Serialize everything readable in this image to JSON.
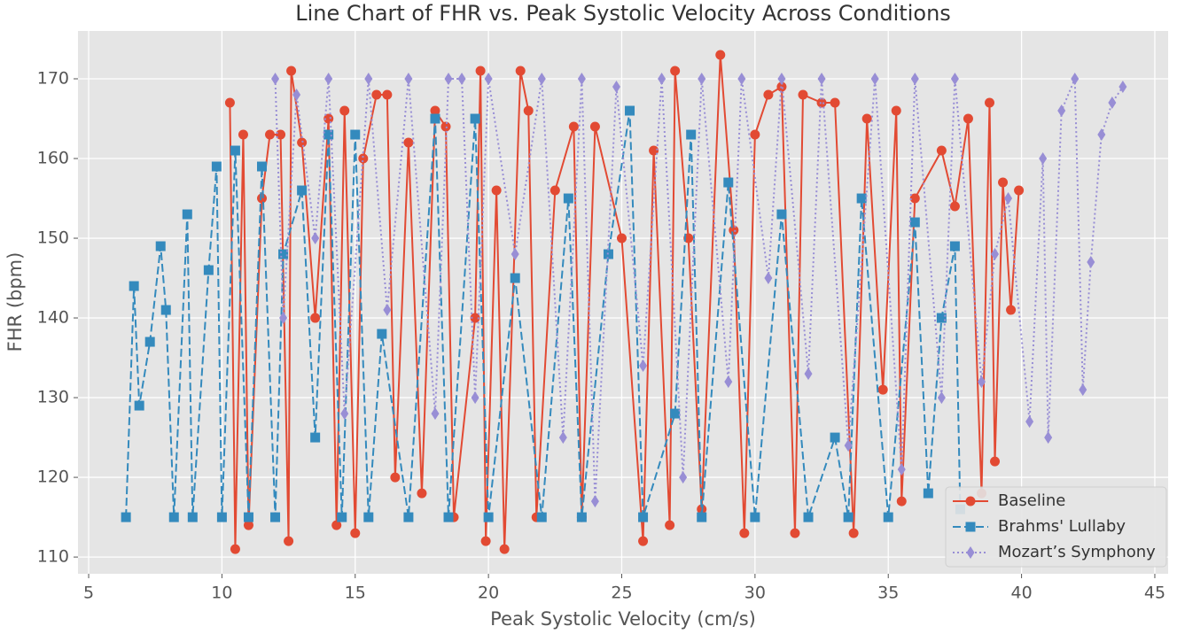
{
  "chart_data": {
    "type": "line",
    "title": "Line Chart of FHR vs. Peak Systolic Velocity Across Conditions",
    "x_label": "Peak Systolic Velocity (cm/s)",
    "y_label": "FHR (bpm)",
    "xlim": [
      4.6,
      45.5
    ],
    "ylim": [
      107.9,
      176
    ],
    "xticks": [
      5,
      10,
      15,
      20,
      25,
      30,
      35,
      40,
      45
    ],
    "yticks": [
      110,
      120,
      130,
      140,
      150,
      160,
      170
    ],
    "grid": true,
    "legend": "lower right",
    "series": [
      {
        "name": "Baseline",
        "color": "#E24A33",
        "marker": "circle",
        "linestyle": "solid",
        "x": [
          10.3,
          10.5,
          10.8,
          11.0,
          11.5,
          11.8,
          12.2,
          12.5,
          12.6,
          13.0,
          13.5,
          14.0,
          14.3,
          14.6,
          15.0,
          15.3,
          15.8,
          16.2,
          16.5,
          17.0,
          17.5,
          18.0,
          18.4,
          18.7,
          19.5,
          19.7,
          19.9,
          20.3,
          20.6,
          21.2,
          21.5,
          21.8,
          22.5,
          23.2,
          23.5,
          24.0,
          25.0,
          25.8,
          26.2,
          26.8,
          27.0,
          27.5,
          28.0,
          28.7,
          29.2,
          29.6,
          30.0,
          30.5,
          31.0,
          31.5,
          31.8,
          32.5,
          33.0,
          33.7,
          34.2,
          34.8,
          35.3,
          35.5,
          36.0,
          37.0,
          37.5,
          38.0,
          38.5,
          38.8,
          39.0,
          39.3,
          39.6,
          39.9
        ],
        "values": [
          167,
          111,
          163,
          114,
          155,
          163,
          163,
          112,
          171,
          162,
          140,
          165,
          114,
          166,
          113,
          160,
          168,
          168,
          120,
          162,
          118,
          166,
          164,
          115,
          140,
          171,
          112,
          156,
          111,
          171,
          166,
          115,
          156,
          164,
          115,
          164,
          150,
          112,
          161,
          114,
          171,
          150,
          116,
          173,
          151,
          113,
          163,
          168,
          169,
          113,
          168,
          167,
          167,
          113,
          165,
          131,
          166,
          117,
          155,
          161,
          154,
          165,
          118,
          167,
          122,
          157,
          141,
          156
        ]
      },
      {
        "name": "Brahms' Lullaby",
        "color": "#348ABD",
        "marker": "square",
        "linestyle": "dashed",
        "x": [
          6.4,
          6.7,
          6.9,
          7.3,
          7.7,
          7.9,
          8.2,
          8.7,
          8.9,
          9.5,
          9.8,
          10.0,
          10.5,
          11.0,
          11.5,
          12.0,
          12.3,
          13.0,
          13.5,
          14.0,
          14.5,
          15.0,
          15.5,
          16.0,
          17.0,
          18.0,
          18.5,
          19.5,
          20.0,
          21.0,
          22.0,
          23.0,
          23.5,
          24.5,
          25.3,
          25.8,
          27.0,
          27.6,
          28.0,
          29.0,
          30.0,
          31.0,
          32.0,
          33.0,
          33.5,
          34.0,
          35.0,
          36.0,
          36.5,
          37.0,
          37.5,
          37.7
        ],
        "values": [
          115,
          144,
          129,
          137,
          149,
          141,
          115,
          153,
          115,
          146,
          159,
          115,
          161,
          115,
          159,
          115,
          148,
          156,
          125,
          163,
          115,
          163,
          115,
          138,
          115,
          165,
          115,
          165,
          115,
          145,
          115,
          155,
          115,
          148,
          166,
          115,
          128,
          163,
          115,
          157,
          115,
          153,
          115,
          125,
          115,
          155,
          115,
          152,
          118,
          140,
          149,
          116
        ]
      },
      {
        "name": "Mozart’s Symphony",
        "color": "#988ED5",
        "marker": "diamond",
        "linestyle": "dotted",
        "x": [
          12.0,
          12.3,
          12.8,
          13.5,
          14.0,
          14.6,
          15.5,
          16.2,
          17.0,
          18.0,
          18.5,
          19.0,
          19.5,
          20.0,
          21.0,
          22.0,
          22.8,
          23.5,
          24.0,
          24.8,
          25.8,
          26.5,
          27.3,
          28.0,
          29.0,
          29.5,
          30.5,
          31.0,
          32.0,
          32.5,
          33.5,
          34.5,
          35.5,
          36.0,
          37.0,
          37.5,
          38.5,
          39.0,
          39.5,
          40.3,
          40.8,
          41.0,
          41.5,
          42.0,
          42.3,
          42.6,
          43.0,
          43.4,
          43.8
        ],
        "values": [
          170,
          140,
          168,
          150,
          170,
          128,
          170,
          141,
          170,
          128,
          170,
          170,
          130,
          170,
          148,
          170,
          125,
          170,
          117,
          169,
          134,
          170,
          120,
          170,
          132,
          170,
          145,
          170,
          133,
          170,
          124,
          170,
          121,
          170,
          130,
          170,
          132,
          148,
          155,
          127,
          160,
          125,
          166,
          170,
          131,
          147,
          163,
          167,
          169
        ]
      }
    ]
  }
}
